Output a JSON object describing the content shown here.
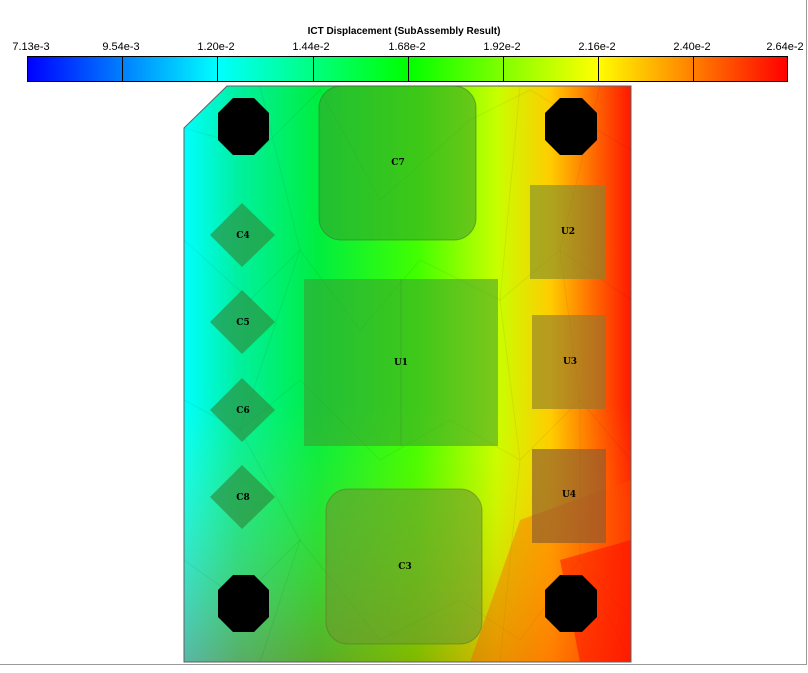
{
  "title": "ICT Displacement (SubAssembly Result)",
  "legend": {
    "ticks": [
      "7.13e-3",
      "9.54e-3",
      "1.20e-2",
      "1.44e-2",
      "1.68e-2",
      "1.92e-2",
      "2.16e-2",
      "2.40e-2",
      "2.64e-2"
    ],
    "colors": [
      "#0000ff",
      "#0080ff",
      "#00ffff",
      "#00ff80",
      "#00ff00",
      "#80ff00",
      "#ffff00",
      "#ff8000",
      "#ff0000"
    ]
  },
  "components": {
    "C7": "C7",
    "C4": "C4",
    "C5": "C5",
    "C6": "C6",
    "C8": "C8",
    "U1": "U1",
    "U2": "U2",
    "U3": "U3",
    "U4": "U4",
    "C3": "C3"
  }
}
